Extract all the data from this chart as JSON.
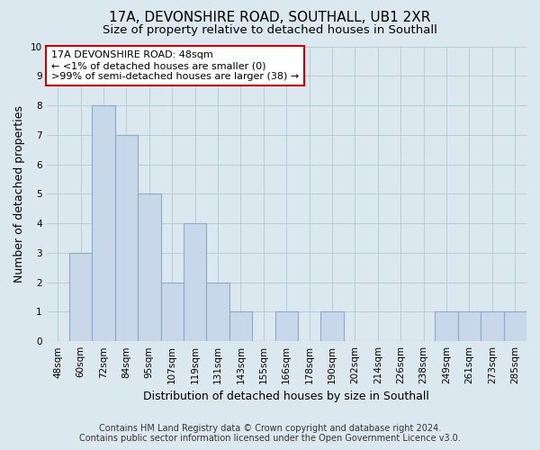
{
  "title": "17A, DEVONSHIRE ROAD, SOUTHALL, UB1 2XR",
  "subtitle": "Size of property relative to detached houses in Southall",
  "xlabel": "Distribution of detached houses by size in Southall",
  "ylabel": "Number of detached properties",
  "categories": [
    "48sqm",
    "60sqm",
    "72sqm",
    "84sqm",
    "95sqm",
    "107sqm",
    "119sqm",
    "131sqm",
    "143sqm",
    "155sqm",
    "166sqm",
    "178sqm",
    "190sqm",
    "202sqm",
    "214sqm",
    "226sqm",
    "238sqm",
    "249sqm",
    "261sqm",
    "273sqm",
    "285sqm"
  ],
  "values": [
    0,
    3,
    8,
    7,
    5,
    2,
    4,
    2,
    1,
    0,
    1,
    0,
    1,
    0,
    0,
    0,
    0,
    1,
    1,
    1,
    1
  ],
  "bar_color": "#c8d8ea",
  "bar_edge_color": "#8aaac8",
  "ylim": [
    0,
    10
  ],
  "yticks": [
    0,
    1,
    2,
    3,
    4,
    5,
    6,
    7,
    8,
    9,
    10
  ],
  "annotation_line1": "17A DEVONSHIRE ROAD: 48sqm",
  "annotation_line2": "← <1% of detached houses are smaller (0)",
  "annotation_line3": ">99% of semi-detached houses are larger (38) →",
  "annotation_box_color": "#ffffff",
  "annotation_box_edge_color": "#cc0000",
  "footer_line1": "Contains HM Land Registry data © Crown copyright and database right 2024.",
  "footer_line2": "Contains public sector information licensed under the Open Government Licence v3.0.",
  "bg_color": "#dce8f0",
  "plot_bg_color": "#dce8f0",
  "grid_color": "#b8ccd8",
  "title_fontsize": 11,
  "subtitle_fontsize": 9.5,
  "axis_label_fontsize": 9,
  "tick_fontsize": 7.5,
  "footer_fontsize": 7,
  "annotation_fontsize": 8
}
